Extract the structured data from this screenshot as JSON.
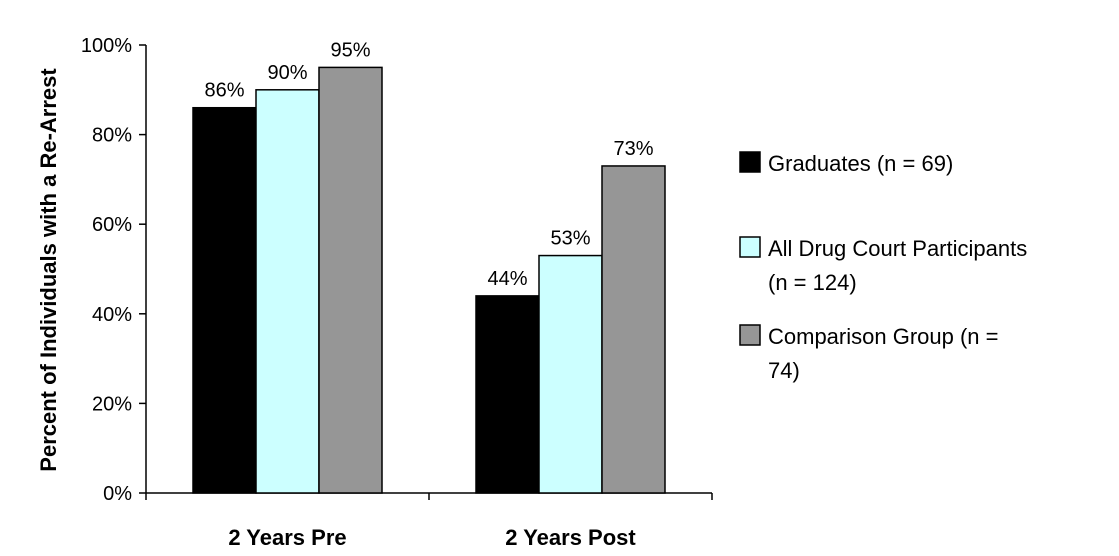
{
  "chart_data": {
    "type": "bar",
    "categories": [
      "2 Years Pre",
      "2 Years Post"
    ],
    "series": [
      {
        "name": "Graduates (n = 69)",
        "legend_lines": [
          "Graduates (n = 69)"
        ],
        "values": [
          86,
          44
        ],
        "color": "#000000"
      },
      {
        "name": "All Drug Court Participants (n = 124)",
        "legend_lines": [
          "All Drug Court Participants",
          "(n = 124)"
        ],
        "values": [
          90,
          53
        ],
        "color": "#ccffff"
      },
      {
        "name": "Comparison Group (n = 74)",
        "legend_lines": [
          "Comparison Group (n =",
          "74)"
        ],
        "values": [
          95,
          73
        ],
        "color": "#969696"
      }
    ],
    "data_labels": [
      [
        "86%",
        "44%"
      ],
      [
        "90%",
        "53%"
      ],
      [
        "95%",
        "73%"
      ]
    ],
    "ylabel": "Percent of Individuals with a Re-Arrest",
    "xlabel": "",
    "ylim": [
      0,
      100
    ],
    "y_ticks": [
      0,
      20,
      40,
      60,
      80,
      100
    ],
    "y_tick_labels": [
      "0%",
      "20%",
      "40%",
      "60%",
      "80%",
      "100%"
    ],
    "grid": false,
    "legend_position": "right"
  }
}
